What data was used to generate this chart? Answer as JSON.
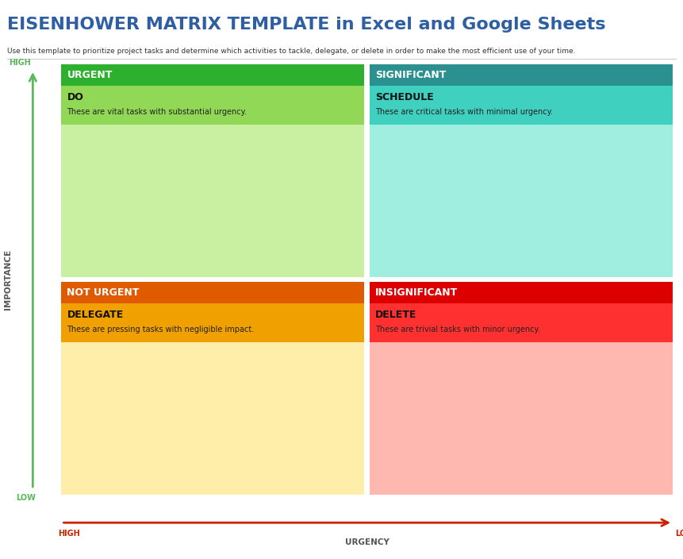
{
  "title": "EISENHOWER MATRIX TEMPLATE in Excel and Google Sheets",
  "subtitle": "Use this template to prioritize project tasks and determine which activities to tackle, delegate, or delete in order to make the most efficient use of your time.",
  "title_color": "#2E5FA3",
  "subtitle_color": "#333333",
  "quadrants": [
    {
      "label": "URGENT",
      "header_color": "#2DB02D",
      "subheader_color": "#90D855",
      "body_color": "#C8F0A0",
      "action": "DO",
      "description": "These are vital tasks with substantial urgency.",
      "row": 0,
      "col": 0
    },
    {
      "label": "SIGNIFICANT",
      "header_color": "#2A9090",
      "subheader_color": "#40D0C0",
      "body_color": "#A0EEE0",
      "action": "SCHEDULE",
      "description": "These are critical tasks with minimal urgency.",
      "row": 0,
      "col": 1
    },
    {
      "label": "NOT URGENT",
      "header_color": "#E05A00",
      "subheader_color": "#F0A000",
      "body_color": "#FFEEAA",
      "action": "DELEGATE",
      "description": "These are pressing tasks with negligible impact.",
      "row": 1,
      "col": 0
    },
    {
      "label": "INSIGNIFICANT",
      "header_color": "#DD0000",
      "subheader_color": "#FF3030",
      "body_color": "#FFB8B0",
      "action": "DELETE",
      "description": "These are trivial tasks with minor urgency.",
      "row": 1,
      "col": 1
    }
  ],
  "importance_label": "IMPORTANCE",
  "urgency_label": "URGENCY",
  "high_label": "HIGH",
  "low_label": "LOW",
  "y_high_label": "HIGH",
  "y_low_label": "LOW",
  "arrow_color_importance": "#5CB85C",
  "arrow_color_urgency": "#CC2200",
  "background_color": "#FFFFFF"
}
